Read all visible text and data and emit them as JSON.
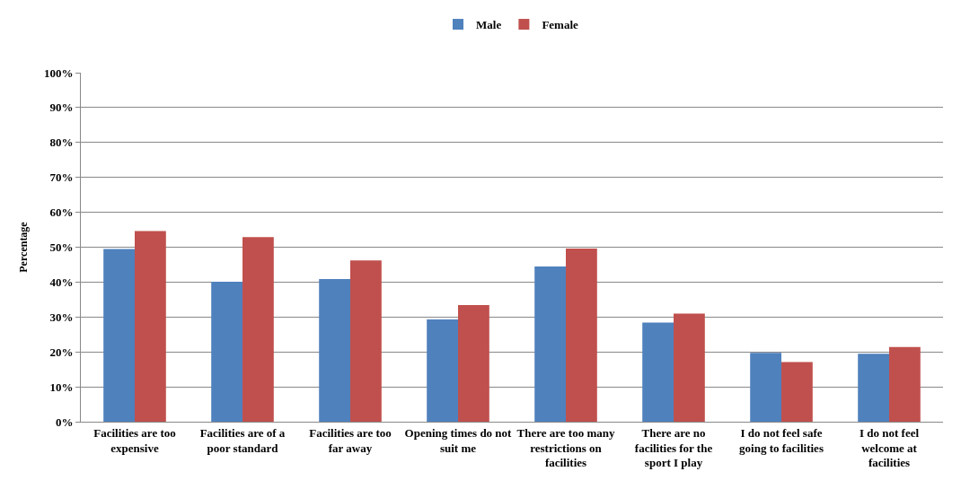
{
  "chart_data": {
    "type": "bar",
    "ylabel": "Percentage",
    "categories": [
      "Facilities are too expensive",
      "Facilities are of a poor standard",
      "Facilities are too far away",
      "Opening times do not suit me",
      "There are too many restrictions on facilities",
      "There are no facilities for the sport I play",
      "I do not feel safe going to facilities",
      "I do not feel welcome at facilities"
    ],
    "series": [
      {
        "name": "Male",
        "color": "#4f81bd",
        "values": [
          49.5,
          40.1,
          40.9,
          29.3,
          44.5,
          28.4,
          19.7,
          19.5
        ]
      },
      {
        "name": "Female",
        "color": "#c0504d",
        "values": [
          54.6,
          52.9,
          46.2,
          33.4,
          49.6,
          31.0,
          17.1,
          21.4
        ]
      }
    ],
    "ylim": [
      0,
      100
    ],
    "yticks": [
      {
        "value": 0,
        "label": "0%"
      },
      {
        "value": 10,
        "label": "10%"
      },
      {
        "value": 20,
        "label": "20%"
      },
      {
        "value": 30,
        "label": "30%"
      },
      {
        "value": 40,
        "label": "40%"
      },
      {
        "value": 50,
        "label": "50%"
      },
      {
        "value": 60,
        "label": "60%"
      },
      {
        "value": 70,
        "label": "70%"
      },
      {
        "value": 80,
        "label": "80%"
      },
      {
        "value": 90,
        "label": "90%"
      },
      {
        "value": 100,
        "label": "100%"
      }
    ],
    "grid": "y",
    "legend": "top"
  }
}
